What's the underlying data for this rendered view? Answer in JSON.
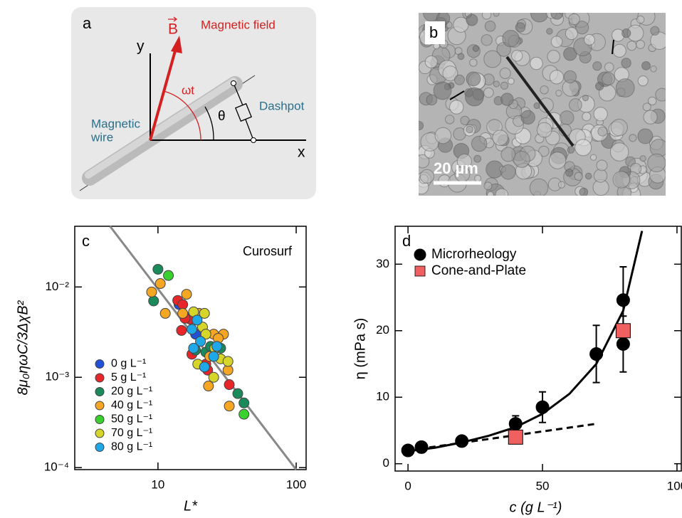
{
  "panels": {
    "a": {
      "label": "a",
      "y_axis": "y",
      "x_axis": "x",
      "field_symbol": "B",
      "field_label": "Magnetic field",
      "angle_field": "ωt",
      "angle_wire": "θ",
      "dashpot": "Dashpot",
      "wire_line1": "Magnetic",
      "wire_line2": "wire"
    },
    "b": {
      "label": "b",
      "scale_bar": "20 µm"
    }
  },
  "chart_data": [
    {
      "type": "scatter",
      "panel_label": "c",
      "annotation": "Curosurf",
      "xlabel": "L*",
      "ylabel": "8μ₀ηωC/3ΔχB²",
      "xscale": "log",
      "yscale": "log",
      "xlim": [
        2.5,
        118
      ],
      "ylim": [
        9.5e-05,
        0.047
      ],
      "xticks": [
        10,
        100
      ],
      "yticks": [
        {
          "value": 0.0001,
          "label": "10⁻⁴"
        },
        {
          "value": 0.001,
          "label": "10⁻³"
        },
        {
          "value": 0.01,
          "label": "10⁻²"
        }
      ],
      "legend": "lower left",
      "series": [
        {
          "name": "0 g L⁻¹",
          "color": "#2350d8",
          "x": [
            14.2,
            16.3,
            18.7
          ],
          "values": [
            0.0064,
            0.0046,
            0.003
          ]
        },
        {
          "name": "5 g L⁻¹",
          "color": "#e8262a",
          "x": [
            13.9,
            15.1,
            17.1,
            14.8,
            17.6,
            22.2,
            22.9,
            32.8,
            15.7
          ],
          "values": [
            0.0071,
            0.0064,
            0.0044,
            0.0033,
            0.0018,
            0.0014,
            0.0012,
            0.00083,
            0.0045
          ]
        },
        {
          "name": "20  g L⁻¹",
          "color": "#1b8a5a",
          "x": [
            10,
            9.3,
            37.8,
            41.9,
            22.2,
            24.0,
            18.7,
            28.4
          ],
          "values": [
            0.0157,
            0.007,
            0.00066,
            0.00052,
            0.0019,
            0.0022,
            0.002,
            0.0021
          ]
        },
        {
          "name": "40 g L⁻¹",
          "color": "#f5a623",
          "x": [
            10.4,
            9.0,
            11.3,
            16.1,
            15.1,
            19.8,
            25.3,
            29.8,
            23.7,
            32.1,
            23.2,
            32.8,
            27.3
          ],
          "values": [
            0.0109,
            0.0088,
            0.0051,
            0.0083,
            0.0051,
            0.0051,
            0.003,
            0.003,
            0.0017,
            0.0012,
            0.0008,
            0.00048,
            0.0027
          ]
        },
        {
          "name": "50  g L⁻¹",
          "color": "#39d12e",
          "x": [
            11.9,
            41.9
          ],
          "values": [
            0.0134,
            0.00039
          ]
        },
        {
          "name": "70 g L⁻¹",
          "color": "#d6d62a",
          "x": [
            18.1,
            21.0,
            22.2,
            25.8,
            28.4,
            19.4,
            25.3,
            32.1,
            21.7
          ],
          "values": [
            0.0053,
            0.0036,
            0.003,
            0.0021,
            0.0016,
            0.0014,
            0.001,
            0.0015,
            0.0051
          ]
        },
        {
          "name": "80 g L⁻¹",
          "color": "#1fa8e8",
          "x": [
            19.2,
            17.6,
            20.3,
            25.3,
            26.7,
            21.7,
            18.1
          ],
          "values": [
            0.0043,
            0.0034,
            0.0025,
            0.0017,
            0.0022,
            0.0013,
            0.0021
          ]
        }
      ],
      "lines": [
        {
          "x": [
            4.5,
            100
          ],
          "values": [
            0.047,
            9.5e-05
          ],
          "color": "#888888"
        }
      ]
    },
    {
      "type": "scatter",
      "panel_label": "d",
      "xlabel": "c (g L⁻¹)",
      "ylabel": "η (mPa s)",
      "xlim": [
        -4.8,
        101.6
      ],
      "ylim": [
        -1.1,
        35.7
      ],
      "xticks": [
        0,
        50,
        100
      ],
      "yticks": [
        0,
        10,
        20,
        30
      ],
      "legend": "upper left",
      "series": [
        {
          "name": "Microrheology",
          "color": "#000000",
          "marker": "circle",
          "x": [
            0,
            5,
            20,
            40,
            50,
            70,
            80,
            80
          ],
          "values": [
            2,
            2.5,
            3.4,
            6,
            8.5,
            16.5,
            24.6,
            18
          ],
          "errors": [
            null,
            null,
            null,
            1.2,
            2.3,
            4.3,
            5,
            4.2
          ]
        },
        {
          "name": "Cone-and-Plate",
          "color": "#f06060",
          "marker": "square",
          "x": [
            40,
            80
          ],
          "values": [
            4,
            20
          ]
        }
      ],
      "lines": [
        {
          "x": [
            0,
            10,
            20,
            30,
            40,
            50,
            60,
            70,
            80,
            87
          ],
          "values": [
            1.9,
            2.4,
            3.2,
            4.2,
            5.5,
            7.5,
            10.5,
            15,
            23,
            35
          ],
          "color": "#000000"
        },
        {
          "x": [
            0,
            70
          ],
          "values": [
            2,
            6
          ],
          "color": "#000000",
          "dashed": true
        }
      ]
    }
  ]
}
